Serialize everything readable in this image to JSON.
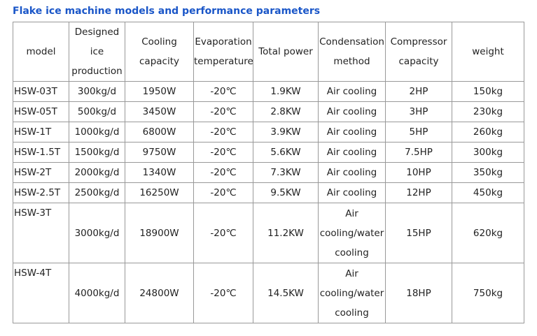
{
  "title": "Flake ice machine models and performance parameters",
  "table": {
    "headers": [
      [
        "model"
      ],
      [
        "Designed",
        "ice",
        "production"
      ],
      [
        "Cooling",
        "capacity"
      ],
      [
        "Evaporation",
        "temperature"
      ],
      [
        "Total power"
      ],
      [
        "Condensation",
        "method"
      ],
      [
        "Compressor",
        "capacity"
      ],
      [
        "weight"
      ]
    ],
    "rows": [
      {
        "model": "HSW-03T",
        "production": "300kg/d",
        "cooling": "1950W",
        "evap": "-20℃",
        "power": "1.9KW",
        "condensation": [
          "Air cooling"
        ],
        "compressor": "2HP",
        "weight": "150kg"
      },
      {
        "model": "HSW-05T",
        "production": "500kg/d",
        "cooling": "3450W",
        "evap": "-20℃",
        "power": "2.8KW",
        "condensation": [
          "Air cooling"
        ],
        "compressor": "3HP",
        "weight": "230kg"
      },
      {
        "model": "HSW-1T",
        "production": "1000kg/d",
        "cooling": "6800W",
        "evap": "-20℃",
        "power": "3.9KW",
        "condensation": [
          "Air cooling"
        ],
        "compressor": "5HP",
        "weight": "260kg"
      },
      {
        "model": "HSW-1.5T",
        "production": "1500kg/d",
        "cooling": "9750W",
        "evap": "-20℃",
        "power": "5.6KW",
        "condensation": [
          "Air cooling"
        ],
        "compressor": "7.5HP",
        "weight": "300kg"
      },
      {
        "model": "HSW-2T",
        "production": "2000kg/d",
        "cooling": "1340W",
        "evap": "-20℃",
        "power": "7.3KW",
        "condensation": [
          "Air cooling"
        ],
        "compressor": "10HP",
        "weight": "350kg"
      },
      {
        "model": "HSW-2.5T",
        "production": "2500kg/d",
        "cooling": "16250W",
        "evap": "-20℃",
        "power": "9.5KW",
        "condensation": [
          "Air cooling"
        ],
        "compressor": "12HP",
        "weight": "450kg"
      },
      {
        "model": "HSW-3T",
        "production": "3000kg/d",
        "cooling": "18900W",
        "evap": "-20℃",
        "power": "11.2KW",
        "condensation": [
          "Air",
          "cooling/water",
          "cooling"
        ],
        "compressor": "15HP",
        "weight": "620kg"
      },
      {
        "model": "HSW-4T",
        "production": "4000kg/d",
        "cooling": "24800W",
        "evap": "-20℃",
        "power": "14.5KW",
        "condensation": [
          "Air",
          "cooling/water",
          "cooling"
        ],
        "compressor": "18HP",
        "weight": "750kg"
      }
    ]
  }
}
